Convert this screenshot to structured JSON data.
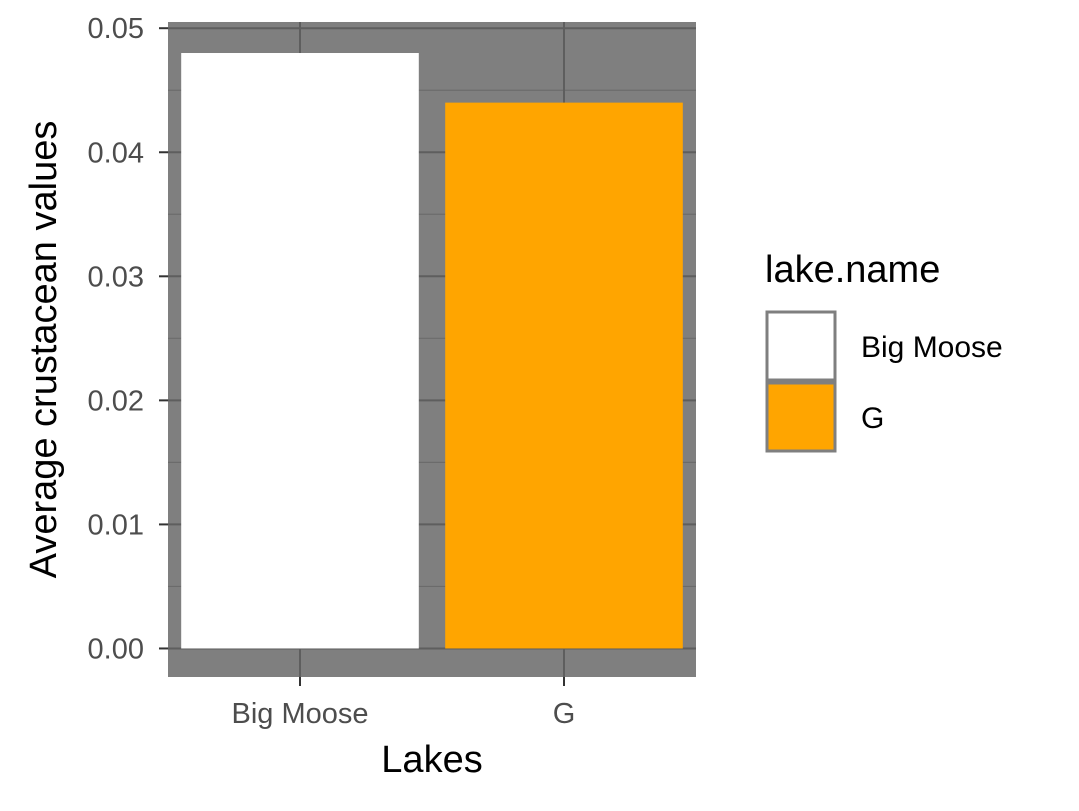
{
  "chart_data": {
    "type": "bar",
    "title": "",
    "xlabel": "Lakes",
    "ylabel": "Average crustacean values",
    "categories": [
      "Big Moose",
      "G"
    ],
    "values": [
      0.048,
      0.044
    ],
    "colors": [
      "#ffffff",
      "#ffa500"
    ],
    "ylim": [
      -0.0023,
      0.0505
    ],
    "yticks": [
      0.0,
      0.01,
      0.02,
      0.03,
      0.04,
      0.05
    ],
    "ytick_labels": [
      "0.00",
      "0.01",
      "0.02",
      "0.03",
      "0.04",
      "0.05"
    ],
    "grid": true,
    "panel_background": "#7f7f7f",
    "legend": {
      "title": "lake.name",
      "position": "right",
      "entries": [
        {
          "label": "Big Moose",
          "color": "#ffffff"
        },
        {
          "label": "G",
          "color": "#ffa500"
        }
      ]
    }
  }
}
